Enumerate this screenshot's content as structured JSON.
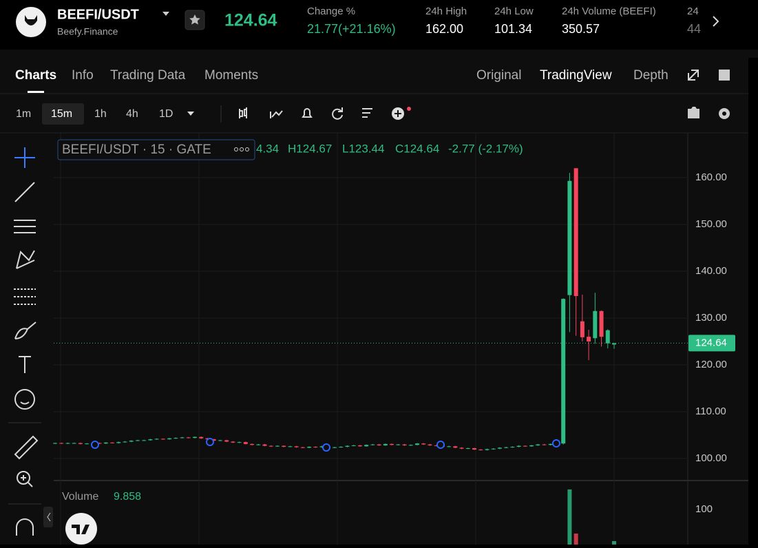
{
  "header": {
    "symbol": "BEEFI/USDT",
    "exchange": "Beefy.Finance",
    "price": "124.64",
    "stats": [
      {
        "label": "Change %",
        "value": "21.77(+21.16%)"
      },
      {
        "label": "24h High",
        "value": "162.00"
      },
      {
        "label": "24h Low",
        "value": "101.34"
      },
      {
        "label": "24h Volume (BEEFI)",
        "value": "350.57"
      },
      {
        "label": "24",
        "value": "44"
      }
    ]
  },
  "tabs": [
    "Charts",
    "Info",
    "Trading Data",
    "Moments"
  ],
  "views": [
    "Original",
    "TradingView",
    "Depth"
  ],
  "intervals": [
    "1m",
    "15m",
    "1h",
    "4h",
    "1D"
  ],
  "chart_legend": {
    "title": "BEEFI/USDT · 15 · GATE",
    "values": [
      "4.34",
      "H124.67",
      "L123.44",
      "C124.64",
      "-2.77 (-2.17%)"
    ]
  },
  "chart_data": {
    "type": "candlestick",
    "up_color": "#2ebd85",
    "down_color": "#f6465d",
    "grid": true,
    "ylim": [
      95.29,
      169.26
    ],
    "yticks": [
      {
        "value": 100,
        "label": "100.00"
      },
      {
        "value": 110,
        "label": "110.00"
      },
      {
        "value": 120,
        "label": "120.00"
      },
      {
        "value": 130,
        "label": "130.00"
      },
      {
        "value": 140,
        "label": "140.00"
      },
      {
        "value": 150,
        "label": "150.00"
      },
      {
        "value": 160,
        "label": "160.00"
      }
    ],
    "last_price": 124.64,
    "candles": [
      [
        103.2,
        103.4,
        103.1,
        103.3
      ],
      [
        103.3,
        103.4,
        103.1,
        103.2
      ],
      [
        103.2,
        103.4,
        103.1,
        103.3
      ],
      [
        103.3,
        103.4,
        103.2,
        103.3
      ],
      [
        103.3,
        103.4,
        103.0,
        103.1
      ],
      [
        103.1,
        103.3,
        103.0,
        103.2
      ],
      [
        103.2,
        103.4,
        103.1,
        103.3
      ],
      [
        103.3,
        103.4,
        103.1,
        103.2
      ],
      [
        103.2,
        103.5,
        103.1,
        103.4
      ],
      [
        103.4,
        103.5,
        103.2,
        103.3
      ],
      [
        103.3,
        103.6,
        103.2,
        103.5
      ],
      [
        103.5,
        103.7,
        103.4,
        103.6
      ],
      [
        103.6,
        103.9,
        103.5,
        103.8
      ],
      [
        103.8,
        104.0,
        103.7,
        103.9
      ],
      [
        103.9,
        104.0,
        103.8,
        103.9
      ],
      [
        103.9,
        104.2,
        103.8,
        104.1
      ],
      [
        104.1,
        104.3,
        104.0,
        104.2
      ],
      [
        104.2,
        104.3,
        104.0,
        104.1
      ],
      [
        104.1,
        104.4,
        104.0,
        104.3
      ],
      [
        104.3,
        104.5,
        104.2,
        104.4
      ],
      [
        104.4,
        104.6,
        104.3,
        104.5
      ],
      [
        104.5,
        104.6,
        104.3,
        104.4
      ],
      [
        104.4,
        104.7,
        104.3,
        104.6
      ],
      [
        104.6,
        104.7,
        104.2,
        104.3
      ],
      [
        104.3,
        104.4,
        104.0,
        104.1
      ],
      [
        104.1,
        104.2,
        103.7,
        103.8
      ],
      [
        103.8,
        104.0,
        103.7,
        103.9
      ],
      [
        103.9,
        104.0,
        103.5,
        103.6
      ],
      [
        103.6,
        103.7,
        103.3,
        103.4
      ],
      [
        103.4,
        103.6,
        103.3,
        103.5
      ],
      [
        103.5,
        103.6,
        103.0,
        103.1
      ],
      [
        103.1,
        103.2,
        102.8,
        102.9
      ],
      [
        102.9,
        103.1,
        102.8,
        103.0
      ],
      [
        103.0,
        103.1,
        102.6,
        102.7
      ],
      [
        102.7,
        102.8,
        102.5,
        102.6
      ],
      [
        102.6,
        102.8,
        102.5,
        102.7
      ],
      [
        102.7,
        102.8,
        102.4,
        102.5
      ],
      [
        102.5,
        102.7,
        102.4,
        102.6
      ],
      [
        102.6,
        102.7,
        102.3,
        102.4
      ],
      [
        102.4,
        102.5,
        102.2,
        102.3
      ],
      [
        102.3,
        102.6,
        102.2,
        102.5
      ],
      [
        102.5,
        102.6,
        102.3,
        102.4
      ],
      [
        102.4,
        102.7,
        102.3,
        102.6
      ],
      [
        102.6,
        102.7,
        102.2,
        102.3
      ],
      [
        102.3,
        102.5,
        102.2,
        102.4
      ],
      [
        102.4,
        102.6,
        102.3,
        102.5
      ],
      [
        102.5,
        102.8,
        102.4,
        102.7
      ],
      [
        102.7,
        102.9,
        102.6,
        102.8
      ],
      [
        102.8,
        102.9,
        102.5,
        102.6
      ],
      [
        102.6,
        103.0,
        102.5,
        102.9
      ],
      [
        102.9,
        103.1,
        102.8,
        103.0
      ],
      [
        103.0,
        103.1,
        102.7,
        102.8
      ],
      [
        102.8,
        103.2,
        102.7,
        103.1
      ],
      [
        103.1,
        103.2,
        102.8,
        102.9
      ],
      [
        102.9,
        103.1,
        102.8,
        103.0
      ],
      [
        103.0,
        103.1,
        102.7,
        102.8
      ],
      [
        102.8,
        103.0,
        102.7,
        102.9
      ],
      [
        102.9,
        103.3,
        102.8,
        103.2
      ],
      [
        103.2,
        103.3,
        102.9,
        103.0
      ],
      [
        103.0,
        103.1,
        102.7,
        102.8
      ],
      [
        102.8,
        102.9,
        102.6,
        102.7
      ],
      [
        102.7,
        102.8,
        102.4,
        102.5
      ],
      [
        102.5,
        102.7,
        102.4,
        102.6
      ],
      [
        102.6,
        102.7,
        102.2,
        102.3
      ],
      [
        102.3,
        102.4,
        102.0,
        102.1
      ],
      [
        102.1,
        102.3,
        102.0,
        102.2
      ],
      [
        102.2,
        102.3,
        101.8,
        101.9
      ],
      [
        101.9,
        102.0,
        101.7,
        101.8
      ],
      [
        101.8,
        102.1,
        101.7,
        102.0
      ],
      [
        102.0,
        102.2,
        101.9,
        102.1
      ],
      [
        102.1,
        102.4,
        102.0,
        102.3
      ],
      [
        102.3,
        102.5,
        102.2,
        102.4
      ],
      [
        102.4,
        102.6,
        102.3,
        102.5
      ],
      [
        102.5,
        102.8,
        102.4,
        102.7
      ],
      [
        102.7,
        102.8,
        102.5,
        102.6
      ],
      [
        102.6,
        102.9,
        102.5,
        102.8
      ],
      [
        102.8,
        103.1,
        102.7,
        103.0
      ],
      [
        103.0,
        103.1,
        102.8,
        102.9
      ],
      [
        102.9,
        103.2,
        102.8,
        103.1
      ],
      [
        103.1,
        103.3,
        103.0,
        103.2
      ],
      [
        103.2,
        134.2,
        103.0,
        134.1
      ],
      [
        134.9,
        161.0,
        127.0,
        159.3
      ],
      [
        162.0,
        162.0,
        126.2,
        134.7
      ],
      [
        129.3,
        135.0,
        125.0,
        125.9
      ],
      [
        126.0,
        127.5,
        121.0,
        125.0
      ],
      [
        125.7,
        135.4,
        124.5,
        131.5
      ],
      [
        131.5,
        131.6,
        123.9,
        126.0
      ],
      [
        124.6,
        127.6,
        123.5,
        127.4
      ],
      [
        124.34,
        124.67,
        123.44,
        124.64
      ]
    ],
    "volume": {
      "title": "Volume",
      "ylim": [
        0,
        178.4
      ],
      "yticks": [
        100
      ],
      "values": [
        null,
        null,
        null,
        null,
        null,
        null,
        null,
        null,
        null,
        null,
        null,
        null,
        null,
        null,
        null,
        null,
        null,
        null,
        null,
        null,
        null,
        null,
        null,
        null,
        null,
        null,
        null,
        null,
        null,
        null,
        null,
        null,
        null,
        null,
        null,
        null,
        null,
        null,
        null,
        null,
        null,
        null,
        null,
        null,
        null,
        null,
        null,
        null,
        null,
        null,
        null,
        null,
        null,
        null,
        null,
        null,
        null,
        null,
        null,
        null,
        null,
        null,
        null,
        null,
        null,
        null,
        null,
        null,
        null,
        null,
        null,
        null,
        null,
        null,
        null,
        null,
        null,
        null,
        null,
        null,
        null,
        157,
        31.4,
        null,
        null,
        null,
        null,
        null,
        9.858
      ]
    }
  }
}
